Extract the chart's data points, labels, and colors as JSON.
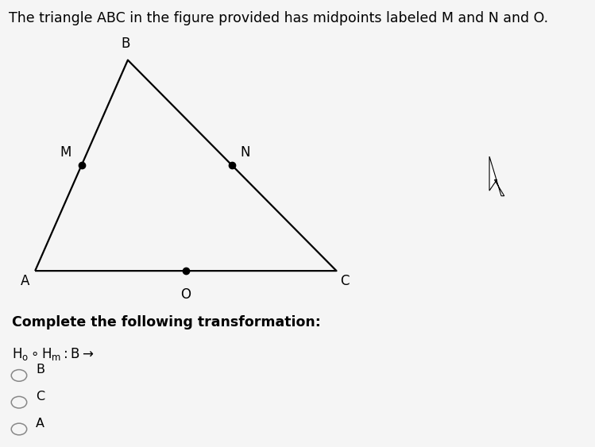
{
  "title": "The triangle ABC in the figure provided has midpoints labeled M and N and O.",
  "title_fontsize": 12.5,
  "title_color": "#000000",
  "page_background": "#f5f5f5",
  "figure_box_color": "#dde4ec",
  "triangle": {
    "A": [
      0.0,
      0.0
    ],
    "B": [
      2.0,
      3.5
    ],
    "C": [
      6.5,
      0.0
    ]
  },
  "midpoints": {
    "M": [
      1.0,
      1.75
    ],
    "N": [
      4.25,
      1.75
    ],
    "O": [
      3.25,
      0.0
    ]
  },
  "question_text": "Complete the following transformation:",
  "options": [
    "B",
    "C",
    "A"
  ],
  "dot_color": "#000000",
  "dot_size": 6,
  "line_color": "#000000",
  "line_width": 1.6,
  "label_fontsize": 12,
  "radio_color": "#888888",
  "text_color": "#333333"
}
